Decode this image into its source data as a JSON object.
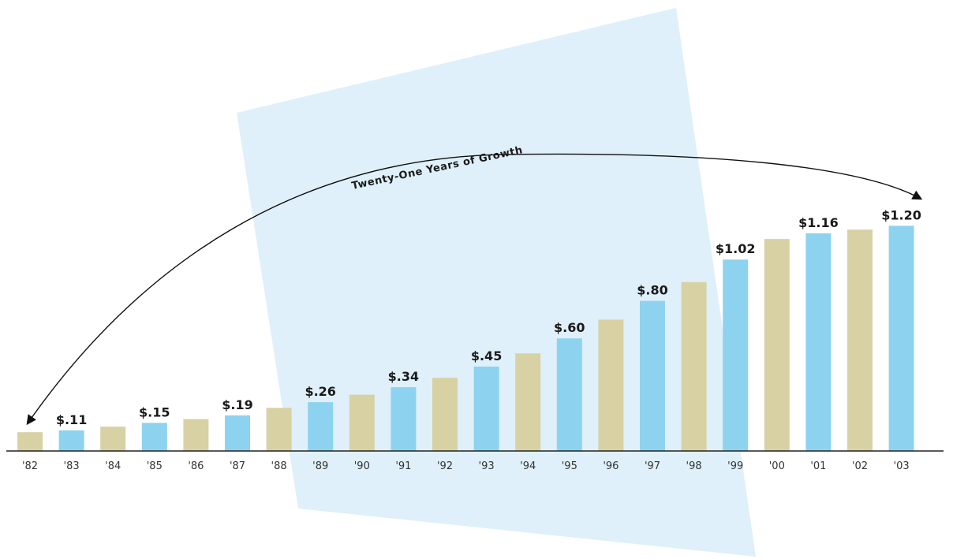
{
  "chart_data": {
    "type": "bar",
    "title": "",
    "xlabel": "",
    "ylabel": "",
    "annotation": "Twenty-One Years of Growth",
    "categories": [
      "'82",
      "'83",
      "'84",
      "'85",
      "'86",
      "'87",
      "'88",
      "'89",
      "'90",
      "'91",
      "'92",
      "'93",
      "'94",
      "'95",
      "'96",
      "'97",
      "'98",
      "'99",
      "'00",
      "'01",
      "'02",
      "'03"
    ],
    "values": [
      0.1,
      0.11,
      0.13,
      0.15,
      0.17,
      0.19,
      0.23,
      0.26,
      0.3,
      0.34,
      0.39,
      0.45,
      0.52,
      0.6,
      0.7,
      0.8,
      0.9,
      1.02,
      1.13,
      1.16,
      1.18,
      1.2
    ],
    "value_labels": [
      "",
      "$.11",
      "",
      "$.15",
      "",
      "$.19",
      "",
      "$.26",
      "",
      "$.34",
      "",
      "$.45",
      "",
      "$.60",
      "",
      "$.80",
      "",
      "$1.02",
      "",
      "$1.16",
      "",
      "$1.20"
    ],
    "ylim": [
      0,
      1.3
    ],
    "grid": false,
    "legend": "none",
    "colors": {
      "even_bar": "#d8d1a4",
      "odd_bar": "#8dd3f0",
      "background_panel": "#dff0fa",
      "axis": "#222222",
      "arc": "#111111"
    }
  }
}
